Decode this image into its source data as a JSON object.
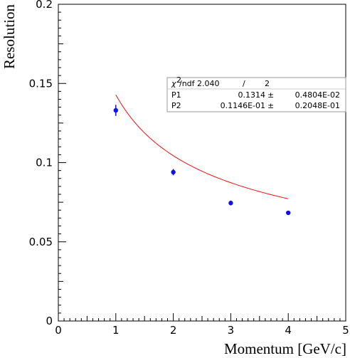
{
  "chart_data": {
    "type": "scatter",
    "xlabel": "Momentum [GeV/c]",
    "ylabel": "Resolution",
    "xlim": [
      0,
      5
    ],
    "ylim": [
      0,
      0.2
    ],
    "x_ticks": [
      "0",
      "1",
      "2",
      "3",
      "4",
      "5"
    ],
    "y_ticks": [
      "0",
      "0.05",
      "0.1",
      "0.15",
      "0.2"
    ],
    "grid": false,
    "series": [
      {
        "x": [
          1,
          2,
          3,
          4
        ],
        "y": [
          0.133,
          0.094,
          0.0745,
          0.0683
        ],
        "yerr": [
          0.0035,
          0.002,
          0.0015,
          0.0012
        ],
        "color": "#1010ee"
      }
    ],
    "fit": {
      "color": "#ee1111",
      "x_range": [
        1,
        4
      ],
      "p1": 0.1314,
      "p2": 0.01146
    },
    "stats_box": {
      "chi2_ndf_label": "/ndf",
      "chi2_value": "2.040",
      "ndf_value": "2",
      "rows": [
        {
          "name": "P1",
          "value": "0.1314",
          "error": "0.4804E-02"
        },
        {
          "name": "P2",
          "value": "0.1146E-01",
          "error": "0.2048E-01"
        }
      ]
    }
  }
}
